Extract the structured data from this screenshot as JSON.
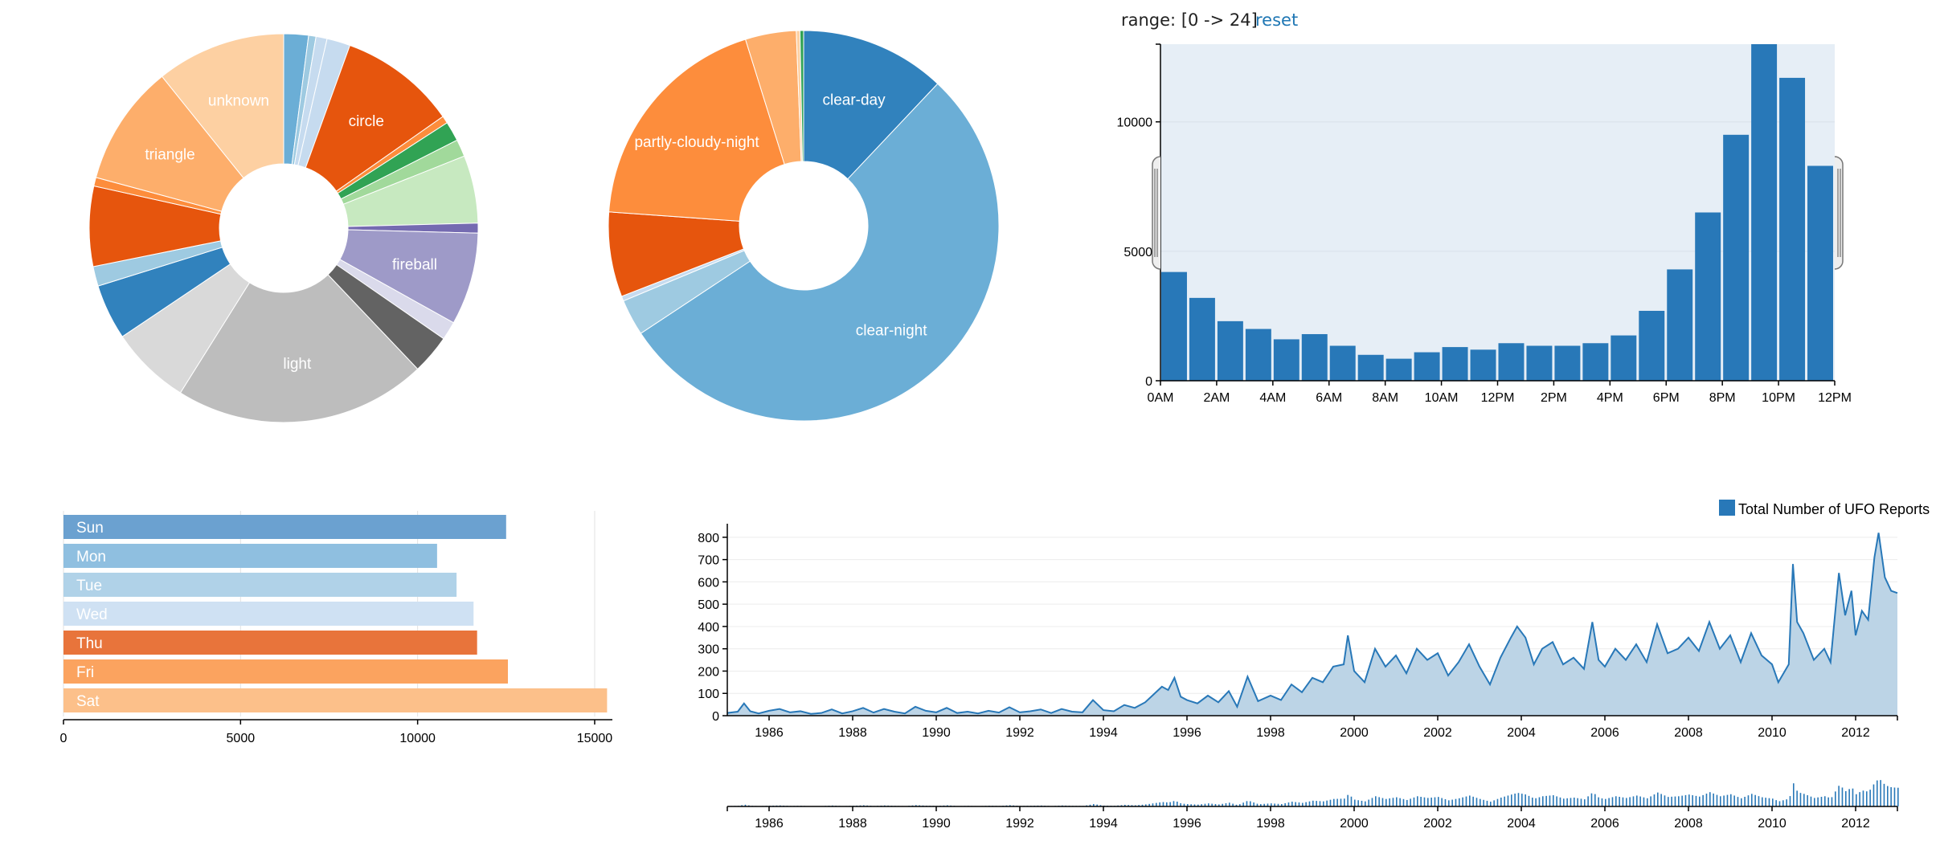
{
  "range_control": {
    "label": "range: [0 -> 24]",
    "reset_label": "reset",
    "reset_color": "#1f77b4"
  },
  "chart_data": [
    {
      "id": "shape-pie",
      "type": "pie",
      "title": "",
      "inner_radius_ratio": 0.33,
      "slices": [
        {
          "label": "",
          "value": 2.0,
          "color": "#6baed6"
        },
        {
          "label": "",
          "value": 0.6,
          "color": "#9ecae1"
        },
        {
          "label": "",
          "value": 0.9,
          "color": "#c6dbef"
        },
        {
          "label": "",
          "value": 1.9,
          "color": "#c6dbef"
        },
        {
          "label": "circle",
          "value": 9.5,
          "color": "#e6550d"
        },
        {
          "label": "",
          "value": 0.6,
          "color": "#fd8d3c"
        },
        {
          "label": "",
          "value": 1.6,
          "color": "#31a354"
        },
        {
          "label": "",
          "value": 1.4,
          "color": "#a1d99b"
        },
        {
          "label": "",
          "value": 5.5,
          "color": "#c7e9c0"
        },
        {
          "label": "",
          "value": 0.8,
          "color": "#756bb1"
        },
        {
          "label": "fireball",
          "value": 7.5,
          "color": "#9e9ac8"
        },
        {
          "label": "",
          "value": 1.5,
          "color": "#dadaeb"
        },
        {
          "label": "",
          "value": 3.2,
          "color": "#636363"
        },
        {
          "label": "light",
          "value": 20.5,
          "color": "#bdbdbd"
        },
        {
          "label": "",
          "value": 6.5,
          "color": "#d9d9d9"
        },
        {
          "label": "",
          "value": 4.5,
          "color": "#3182bd"
        },
        {
          "label": "",
          "value": 1.6,
          "color": "#9ecae1"
        },
        {
          "label": "",
          "value": 6.5,
          "color": "#e6550d"
        },
        {
          "label": "",
          "value": 0.7,
          "color": "#fd8d3c"
        },
        {
          "label": "triangle",
          "value": 9.8,
          "color": "#fdae6b"
        },
        {
          "label": "unknown",
          "value": 10.5,
          "color": "#fdd0a2"
        }
      ]
    },
    {
      "id": "weather-pie",
      "type": "pie",
      "title": "",
      "inner_radius_ratio": 0.33,
      "slices": [
        {
          "label": "clear-day",
          "value": 12.0,
          "color": "#3182bd"
        },
        {
          "label": "clear-night",
          "value": 53.5,
          "color": "#6baed6"
        },
        {
          "label": "",
          "value": 3.0,
          "color": "#9ecae1"
        },
        {
          "label": "",
          "value": 0.4,
          "color": "#c6dbef"
        },
        {
          "label": "",
          "value": 7.0,
          "color": "#e6550d"
        },
        {
          "label": "partly-cloudy-night",
          "value": 19.0,
          "color": "#fd8d3c"
        },
        {
          "label": "",
          "value": 4.2,
          "color": "#fdae6b"
        },
        {
          "label": "",
          "value": 0.3,
          "color": "#fdd0a2"
        },
        {
          "label": "",
          "value": 0.3,
          "color": "#31a354"
        }
      ]
    },
    {
      "id": "hour-histogram",
      "type": "bar",
      "title": "",
      "xlabel": "",
      "ylabel": "",
      "x_ticks": [
        "0AM",
        "2AM",
        "4AM",
        "6AM",
        "8AM",
        "10AM",
        "12PM",
        "2PM",
        "4PM",
        "6PM",
        "8PM",
        "10PM",
        "12PM"
      ],
      "y_ticks": [
        "0",
        "5000",
        "10000"
      ],
      "ylim": [
        0,
        13000
      ],
      "values": [
        4200,
        3200,
        2300,
        2000,
        1600,
        1800,
        1350,
        1000,
        850,
        1100,
        1300,
        1200,
        1450,
        1350,
        1350,
        1450,
        1750,
        2700,
        4300,
        6500,
        9500,
        13000,
        11700,
        8300
      ],
      "bar_color": "#2878b8",
      "brush_range": [
        0,
        24
      ]
    },
    {
      "id": "weekday-rows",
      "type": "bar",
      "orientation": "horizontal",
      "title": "",
      "categories": [
        "Sun",
        "Mon",
        "Tue",
        "Wed",
        "Thu",
        "Fri",
        "Sat"
      ],
      "values": [
        12500,
        10550,
        11100,
        11580,
        11680,
        12550,
        15350
      ],
      "colors": [
        "#6ba1d0",
        "#8fbfe0",
        "#b0d2e8",
        "#cfe1f3",
        "#e8743b",
        "#fba35f",
        "#fcc08a"
      ],
      "x_ticks": [
        "0",
        "5000",
        "10000",
        "15000"
      ],
      "xlim": [
        0,
        15500
      ]
    },
    {
      "id": "reports-timeline",
      "type": "area",
      "title": "",
      "legend": "Total Number of UFO Reports",
      "legend_position": "top-right",
      "legend_color": "#2878b8",
      "xlim": [
        1985,
        2013
      ],
      "ylim": [
        0,
        850
      ],
      "x_ticks": [
        "1986",
        "1988",
        "1990",
        "1992",
        "1994",
        "1996",
        "1998",
        "2000",
        "2002",
        "2004",
        "2006",
        "2008",
        "2010",
        "2012"
      ],
      "y_ticks": [
        "0",
        "100",
        "200",
        "300",
        "400",
        "500",
        "600",
        "700",
        "800"
      ],
      "line_color": "#2878b8",
      "fill_color": "#bcd4e6",
      "points": [
        [
          1985.0,
          12
        ],
        [
          1985.25,
          18
        ],
        [
          1985.4,
          55
        ],
        [
          1985.55,
          20
        ],
        [
          1985.75,
          10
        ],
        [
          1986.0,
          22
        ],
        [
          1986.25,
          30
        ],
        [
          1986.5,
          15
        ],
        [
          1986.75,
          20
        ],
        [
          1987.0,
          8
        ],
        [
          1987.25,
          12
        ],
        [
          1987.5,
          28
        ],
        [
          1987.75,
          10
        ],
        [
          1988.0,
          20
        ],
        [
          1988.25,
          35
        ],
        [
          1988.5,
          14
        ],
        [
          1988.75,
          30
        ],
        [
          1989.0,
          18
        ],
        [
          1989.25,
          10
        ],
        [
          1989.5,
          40
        ],
        [
          1989.75,
          22
        ],
        [
          1990.0,
          15
        ],
        [
          1990.25,
          35
        ],
        [
          1990.5,
          12
        ],
        [
          1990.75,
          18
        ],
        [
          1991.0,
          10
        ],
        [
          1991.25,
          22
        ],
        [
          1991.5,
          14
        ],
        [
          1991.75,
          38
        ],
        [
          1992.0,
          15
        ],
        [
          1992.25,
          20
        ],
        [
          1992.5,
          28
        ],
        [
          1992.75,
          12
        ],
        [
          1993.0,
          30
        ],
        [
          1993.25,
          18
        ],
        [
          1993.5,
          15
        ],
        [
          1993.75,
          70
        ],
        [
          1994.0,
          25
        ],
        [
          1994.25,
          20
        ],
        [
          1994.5,
          48
        ],
        [
          1994.75,
          35
        ],
        [
          1995.0,
          60
        ],
        [
          1995.2,
          95
        ],
        [
          1995.4,
          130
        ],
        [
          1995.55,
          115
        ],
        [
          1995.7,
          170
        ],
        [
          1995.85,
          85
        ],
        [
          1996.0,
          70
        ],
        [
          1996.25,
          55
        ],
        [
          1996.5,
          90
        ],
        [
          1996.75,
          60
        ],
        [
          1997.0,
          110
        ],
        [
          1997.2,
          40
        ],
        [
          1997.45,
          175
        ],
        [
          1997.7,
          65
        ],
        [
          1998.0,
          90
        ],
        [
          1998.25,
          70
        ],
        [
          1998.5,
          140
        ],
        [
          1998.75,
          105
        ],
        [
          1999.0,
          170
        ],
        [
          1999.25,
          150
        ],
        [
          1999.5,
          220
        ],
        [
          1999.75,
          230
        ],
        [
          1999.85,
          360
        ],
        [
          2000.0,
          200
        ],
        [
          2000.25,
          150
        ],
        [
          2000.5,
          300
        ],
        [
          2000.75,
          220
        ],
        [
          2001.0,
          270
        ],
        [
          2001.25,
          190
        ],
        [
          2001.5,
          300
        ],
        [
          2001.75,
          250
        ],
        [
          2002.0,
          280
        ],
        [
          2002.25,
          180
        ],
        [
          2002.5,
          240
        ],
        [
          2002.75,
          320
        ],
        [
          2003.0,
          220
        ],
        [
          2003.25,
          140
        ],
        [
          2003.5,
          260
        ],
        [
          2003.75,
          350
        ],
        [
          2003.9,
          400
        ],
        [
          2004.1,
          350
        ],
        [
          2004.3,
          230
        ],
        [
          2004.5,
          300
        ],
        [
          2004.75,
          330
        ],
        [
          2005.0,
          230
        ],
        [
          2005.25,
          260
        ],
        [
          2005.5,
          210
        ],
        [
          2005.7,
          420
        ],
        [
          2005.85,
          250
        ],
        [
          2006.0,
          220
        ],
        [
          2006.25,
          300
        ],
        [
          2006.5,
          250
        ],
        [
          2006.75,
          320
        ],
        [
          2007.0,
          240
        ],
        [
          2007.25,
          410
        ],
        [
          2007.5,
          280
        ],
        [
          2007.75,
          300
        ],
        [
          2008.0,
          350
        ],
        [
          2008.25,
          290
        ],
        [
          2008.5,
          420
        ],
        [
          2008.75,
          300
        ],
        [
          2009.0,
          360
        ],
        [
          2009.25,
          240
        ],
        [
          2009.5,
          370
        ],
        [
          2009.75,
          270
        ],
        [
          2010.0,
          230
        ],
        [
          2010.15,
          150
        ],
        [
          2010.4,
          230
        ],
        [
          2010.5,
          680
        ],
        [
          2010.6,
          420
        ],
        [
          2010.75,
          370
        ],
        [
          2011.0,
          250
        ],
        [
          2011.25,
          300
        ],
        [
          2011.4,
          240
        ],
        [
          2011.6,
          640
        ],
        [
          2011.75,
          450
        ],
        [
          2011.9,
          560
        ],
        [
          2012.0,
          360
        ],
        [
          2012.15,
          470
        ],
        [
          2012.3,
          430
        ],
        [
          2012.45,
          710
        ],
        [
          2012.55,
          820
        ],
        [
          2012.7,
          620
        ],
        [
          2012.85,
          560
        ],
        [
          2013.0,
          550
        ]
      ]
    },
    {
      "id": "timeline-navigator",
      "type": "bar",
      "title": "",
      "xlim": [
        1985,
        2013
      ],
      "x_ticks": [
        "1986",
        "1988",
        "1990",
        "1992",
        "1994",
        "1996",
        "1998",
        "2000",
        "2002",
        "2004",
        "2006",
        "2008",
        "2010",
        "2012"
      ],
      "bar_color": "#2878b8",
      "ylim": [
        0,
        850
      ]
    }
  ]
}
